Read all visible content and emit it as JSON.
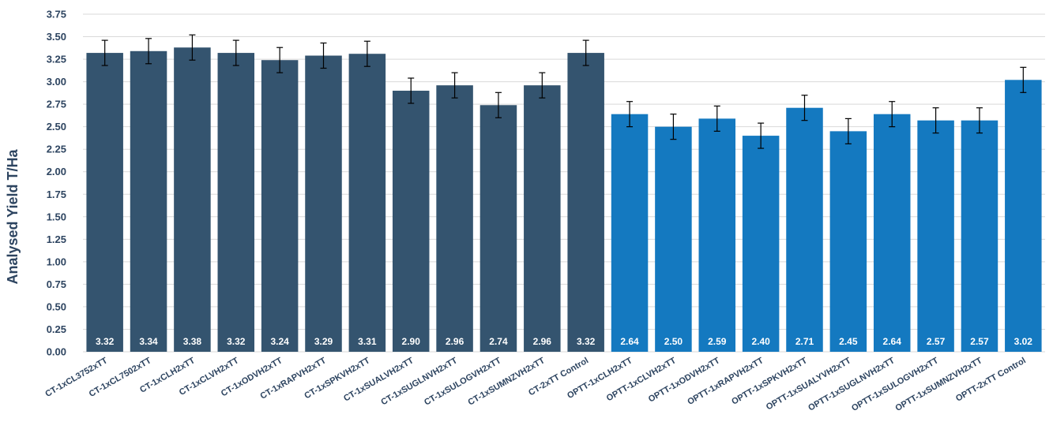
{
  "chart_data": {
    "type": "bar",
    "title": "",
    "xlabel": "",
    "ylabel": "Analysed Yield T/Ha",
    "ylim": [
      0,
      3.75
    ],
    "yticks": [
      "0.00",
      "0.25",
      "0.50",
      "0.75",
      "1.00",
      "1.25",
      "1.50",
      "1.75",
      "2.00",
      "2.25",
      "2.50",
      "2.75",
      "3.00",
      "3.25",
      "3.50",
      "3.75"
    ],
    "grid": true,
    "legend": "none",
    "categories": [
      "CT-1xCL3752xTT",
      "CT-1xCL7502xTT",
      "CT-1xCLH2xTT",
      "CT-1xCLVH2xTT",
      "CT-1xODVH2xTT",
      "CT-1xRAPVH2xTT",
      "CT-1xSPKVH2xTT",
      "CT-1xSUALVH2xTT",
      "CT-1xSUGLNVH2xTT",
      "CT-1xSULOGVH2xTT",
      "CT-1xSUMNZVH2xTT",
      "CT-2xTT Control",
      "OPTT-1xCLH2xTT",
      "OPTT-1xCLVH2xTT",
      "OPTT-1xODVH2xTT",
      "OPTT-1xRAPVH2xTT",
      "OPTT-1xSPKVH2xTT",
      "OPTT-1xSUALYVH2xTT",
      "OPTT-1xSUGLNVH2xTT",
      "OPTT-1xSULOGVH2xTT",
      "OPTT-1xSUMNZVH2xTT",
      "OPTT-2xTT Control"
    ],
    "values": [
      3.32,
      3.34,
      3.38,
      3.32,
      3.24,
      3.29,
      3.31,
      2.9,
      2.96,
      2.74,
      2.96,
      3.32,
      2.64,
      2.5,
      2.59,
      2.4,
      2.71,
      2.45,
      2.64,
      2.57,
      2.57,
      3.02
    ],
    "value_labels": [
      "3.32",
      "3.34",
      "3.38",
      "3.32",
      "3.24",
      "3.29",
      "3.31",
      "2.90",
      "2.96",
      "2.74",
      "2.96",
      "3.32",
      "2.64",
      "2.50",
      "2.59",
      "2.40",
      "2.71",
      "2.45",
      "2.64",
      "2.57",
      "2.57",
      "3.02"
    ],
    "error": [
      0.14,
      0.14,
      0.14,
      0.14,
      0.14,
      0.14,
      0.14,
      0.14,
      0.14,
      0.14,
      0.14,
      0.14,
      0.14,
      0.14,
      0.14,
      0.14,
      0.14,
      0.14,
      0.14,
      0.14,
      0.14,
      0.14
    ],
    "colors": {
      "CT": "#34546f",
      "OPTT": "#1479c0",
      "text": "#2d4460",
      "grid": "#d9d9d9"
    },
    "group_split_index": 12
  }
}
